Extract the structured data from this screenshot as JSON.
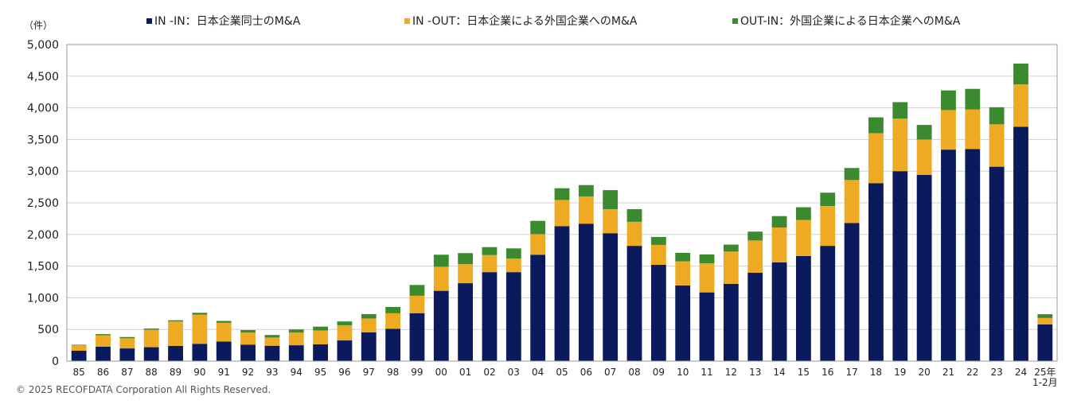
{
  "chart_data": {
    "type": "bar",
    "stacked": true,
    "title": "",
    "ylabel": "（件）",
    "xlabel": "",
    "ylim": [
      0,
      5000
    ],
    "yticks": [
      0,
      500,
      1000,
      1500,
      2000,
      2500,
      3000,
      3500,
      4000,
      4500,
      5000
    ],
    "ytick_labels": [
      "0",
      "500",
      "1,000",
      "1,500",
      "2,000",
      "2,500",
      "3,000",
      "3,500",
      "4,000",
      "4,500",
      "5,000"
    ],
    "grid": true,
    "legend_position": "top",
    "categories": [
      "85",
      "86",
      "87",
      "88",
      "89",
      "90",
      "91",
      "92",
      "93",
      "94",
      "95",
      "96",
      "97",
      "98",
      "99",
      "00",
      "01",
      "02",
      "03",
      "04",
      "05",
      "06",
      "07",
      "08",
      "09",
      "10",
      "11",
      "12",
      "13",
      "14",
      "15",
      "16",
      "17",
      "18",
      "19",
      "20",
      "21",
      "22",
      "23",
      "24",
      "25年 1-2月"
    ],
    "series": [
      {
        "name": "IN -IN：日本企業同士のM&A",
        "color": "#0b1a5c",
        "values": [
          163,
          226,
          200,
          219,
          240,
          273,
          309,
          260,
          242,
          250,
          264,
          326,
          453,
          510,
          757,
          1110,
          1230,
          1405,
          1405,
          1680,
          2130,
          2170,
          2020,
          1820,
          1520,
          1195,
          1085,
          1220,
          1395,
          1560,
          1660,
          1820,
          2180,
          2810,
          3000,
          2940,
          3340,
          3350,
          3070,
          3700,
          580
        ]
      },
      {
        "name": "IN -OUT：日本企業による外国企業へのM&A",
        "color": "#eeaa22",
        "values": [
          85,
          180,
          160,
          275,
          385,
          460,
          295,
          190,
          130,
          200,
          220,
          240,
          220,
          245,
          275,
          380,
          300,
          270,
          215,
          325,
          415,
          430,
          380,
          380,
          315,
          380,
          460,
          510,
          510,
          550,
          570,
          630,
          680,
          790,
          830,
          560,
          625,
          625,
          670,
          670,
          100
        ]
      },
      {
        "name": "OUT-IN：外国企業による日本企業へのM&A",
        "color": "#3b8a2f",
        "values": [
          10,
          20,
          20,
          20,
          20,
          30,
          30,
          40,
          40,
          50,
          60,
          60,
          70,
          100,
          170,
          190,
          175,
          125,
          160,
          210,
          185,
          180,
          300,
          200,
          125,
          135,
          140,
          110,
          140,
          180,
          200,
          210,
          190,
          250,
          260,
          230,
          310,
          325,
          270,
          330,
          60
        ]
      }
    ],
    "copyright": "© 2025 RECOFDATA Corporation All Rights Reserved."
  }
}
